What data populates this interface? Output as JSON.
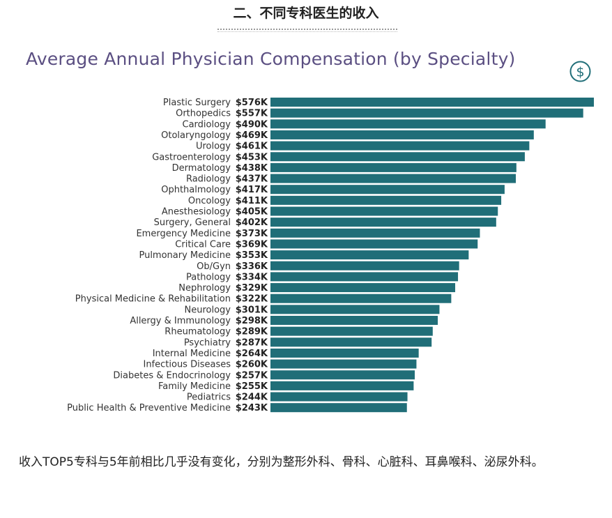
{
  "section_heading": "二、不同专科医生的收入",
  "chart_data": {
    "type": "bar",
    "orientation": "horizontal",
    "title": "Average Annual Physician Compensation (by Specialty)",
    "unit_prefix": "$",
    "unit_suffix": "K",
    "bar_color": "#206e78",
    "title_color": "#5b4f82",
    "icon": "dollar-circle-icon",
    "categories": [
      "Plastic Surgery",
      "Orthopedics",
      "Cardiology",
      "Otolaryngology",
      "Urology",
      "Gastroenterology",
      "Dermatology",
      "Radiology",
      "Ophthalmology",
      "Oncology",
      "Anesthesiology",
      "Surgery, General",
      "Emergency Medicine",
      "Critical Care",
      "Pulmonary Medicine",
      "Ob/Gyn",
      "Pathology",
      "Nephrology",
      "Physical Medicine & Rehabilitation",
      "Neurology",
      "Allergy & Immunology",
      "Rheumatology",
      "Psychiatry",
      "Internal Medicine",
      "Infectious Diseases",
      "Diabetes & Endocrinology",
      "Family Medicine",
      "Pediatrics",
      "Public Health & Preventive Medicine"
    ],
    "values": [
      576,
      557,
      490,
      469,
      461,
      453,
      438,
      437,
      417,
      411,
      405,
      402,
      373,
      369,
      353,
      336,
      334,
      329,
      322,
      301,
      298,
      289,
      287,
      264,
      260,
      257,
      255,
      244,
      243
    ],
    "value_labels": [
      "$576K",
      "$557K",
      "$490K",
      "$469K",
      "$461K",
      "$453K",
      "$438K",
      "$437K",
      "$417K",
      "$411K",
      "$405K",
      "$402K",
      "$373K",
      "$369K",
      "$353K",
      "$336K",
      "$334K",
      "$329K",
      "$322K",
      "$301K",
      "$298K",
      "$289K",
      "$287K",
      "$264K",
      "$260K",
      "$257K",
      "$255K",
      "$244K",
      "$243K"
    ],
    "xlim": [
      0,
      576
    ],
    "grid": false,
    "legend": "none"
  },
  "caption": "收入TOP5专科与5年前相比几乎没有变化，分别为整形外科、骨科、心脏科、耳鼻喉科、泌尿外科。"
}
